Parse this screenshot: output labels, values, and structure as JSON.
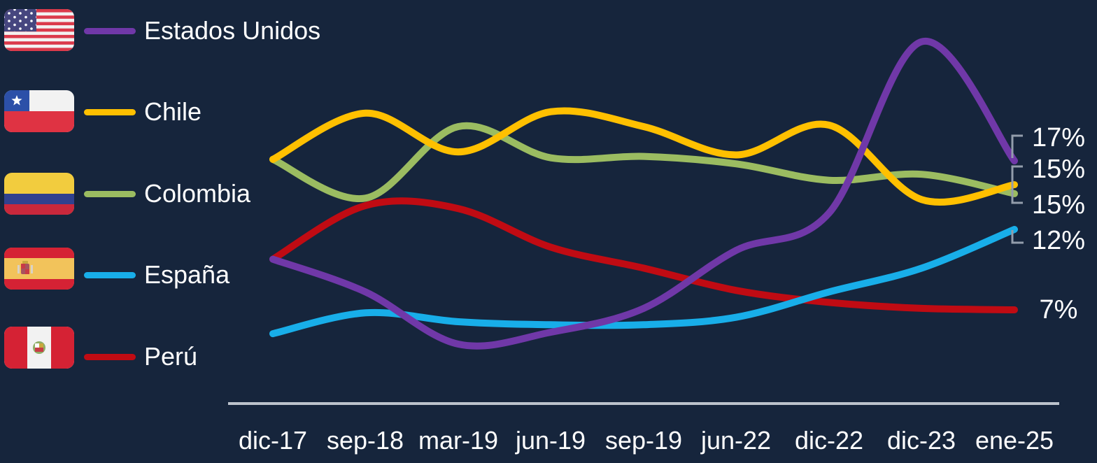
{
  "ui": {
    "background": "#16253C",
    "text_color": "#FFFFFF",
    "axis_line_color": "#BCC3CC",
    "callout_color": "#939DAB"
  },
  "legend": {
    "items": [
      {
        "label": "Estados Unidos",
        "flag": "united-states"
      },
      {
        "label": "Chile",
        "flag": "chile"
      },
      {
        "label": "Colombia",
        "flag": "colombia"
      },
      {
        "label": "España",
        "flag": "spain"
      },
      {
        "label": "Perú",
        "flag": "peru"
      }
    ]
  },
  "chart_data": {
    "type": "line",
    "title": "",
    "xlabel": "",
    "ylabel": "",
    "grid": false,
    "legend_position": "left",
    "ylim": [
      0,
      27
    ],
    "unit": "%",
    "categories": [
      "dic-17",
      "sep-18",
      "mar-19",
      "jun-19",
      "sep-19",
      "jun-22",
      "dic-22",
      "dic-23",
      "ene-25"
    ],
    "series": [
      {
        "name": "Estados Unidos",
        "color": "#7038A8",
        "end_label": "17%",
        "values": [
          10.4,
          8.2,
          4.7,
          5.5,
          7.1,
          11.0,
          13.5,
          25.0,
          17.0
        ]
      },
      {
        "name": "Chile",
        "color": "#FFC000",
        "end_label": "15%",
        "values": [
          17.1,
          20.2,
          17.6,
          20.3,
          19.3,
          17.4,
          19.4,
          14.4,
          15.4
        ]
      },
      {
        "name": "Colombia",
        "color": "#9BBC61",
        "end_label": "15%",
        "values": [
          17.1,
          14.5,
          19.3,
          17.2,
          17.3,
          16.8,
          15.7,
          16.1,
          14.8
        ]
      },
      {
        "name": "España",
        "color": "#18AEE9",
        "end_label": "12%",
        "values": [
          5.4,
          6.8,
          6.2,
          6.0,
          6.0,
          6.5,
          8.2,
          9.8,
          12.4
        ]
      },
      {
        "name": "Perú",
        "color": "#C00B13",
        "end_label": "7%",
        "values": [
          10.4,
          14.0,
          13.8,
          11.2,
          9.8,
          8.3,
          7.5,
          7.1,
          7.0
        ]
      }
    ]
  }
}
